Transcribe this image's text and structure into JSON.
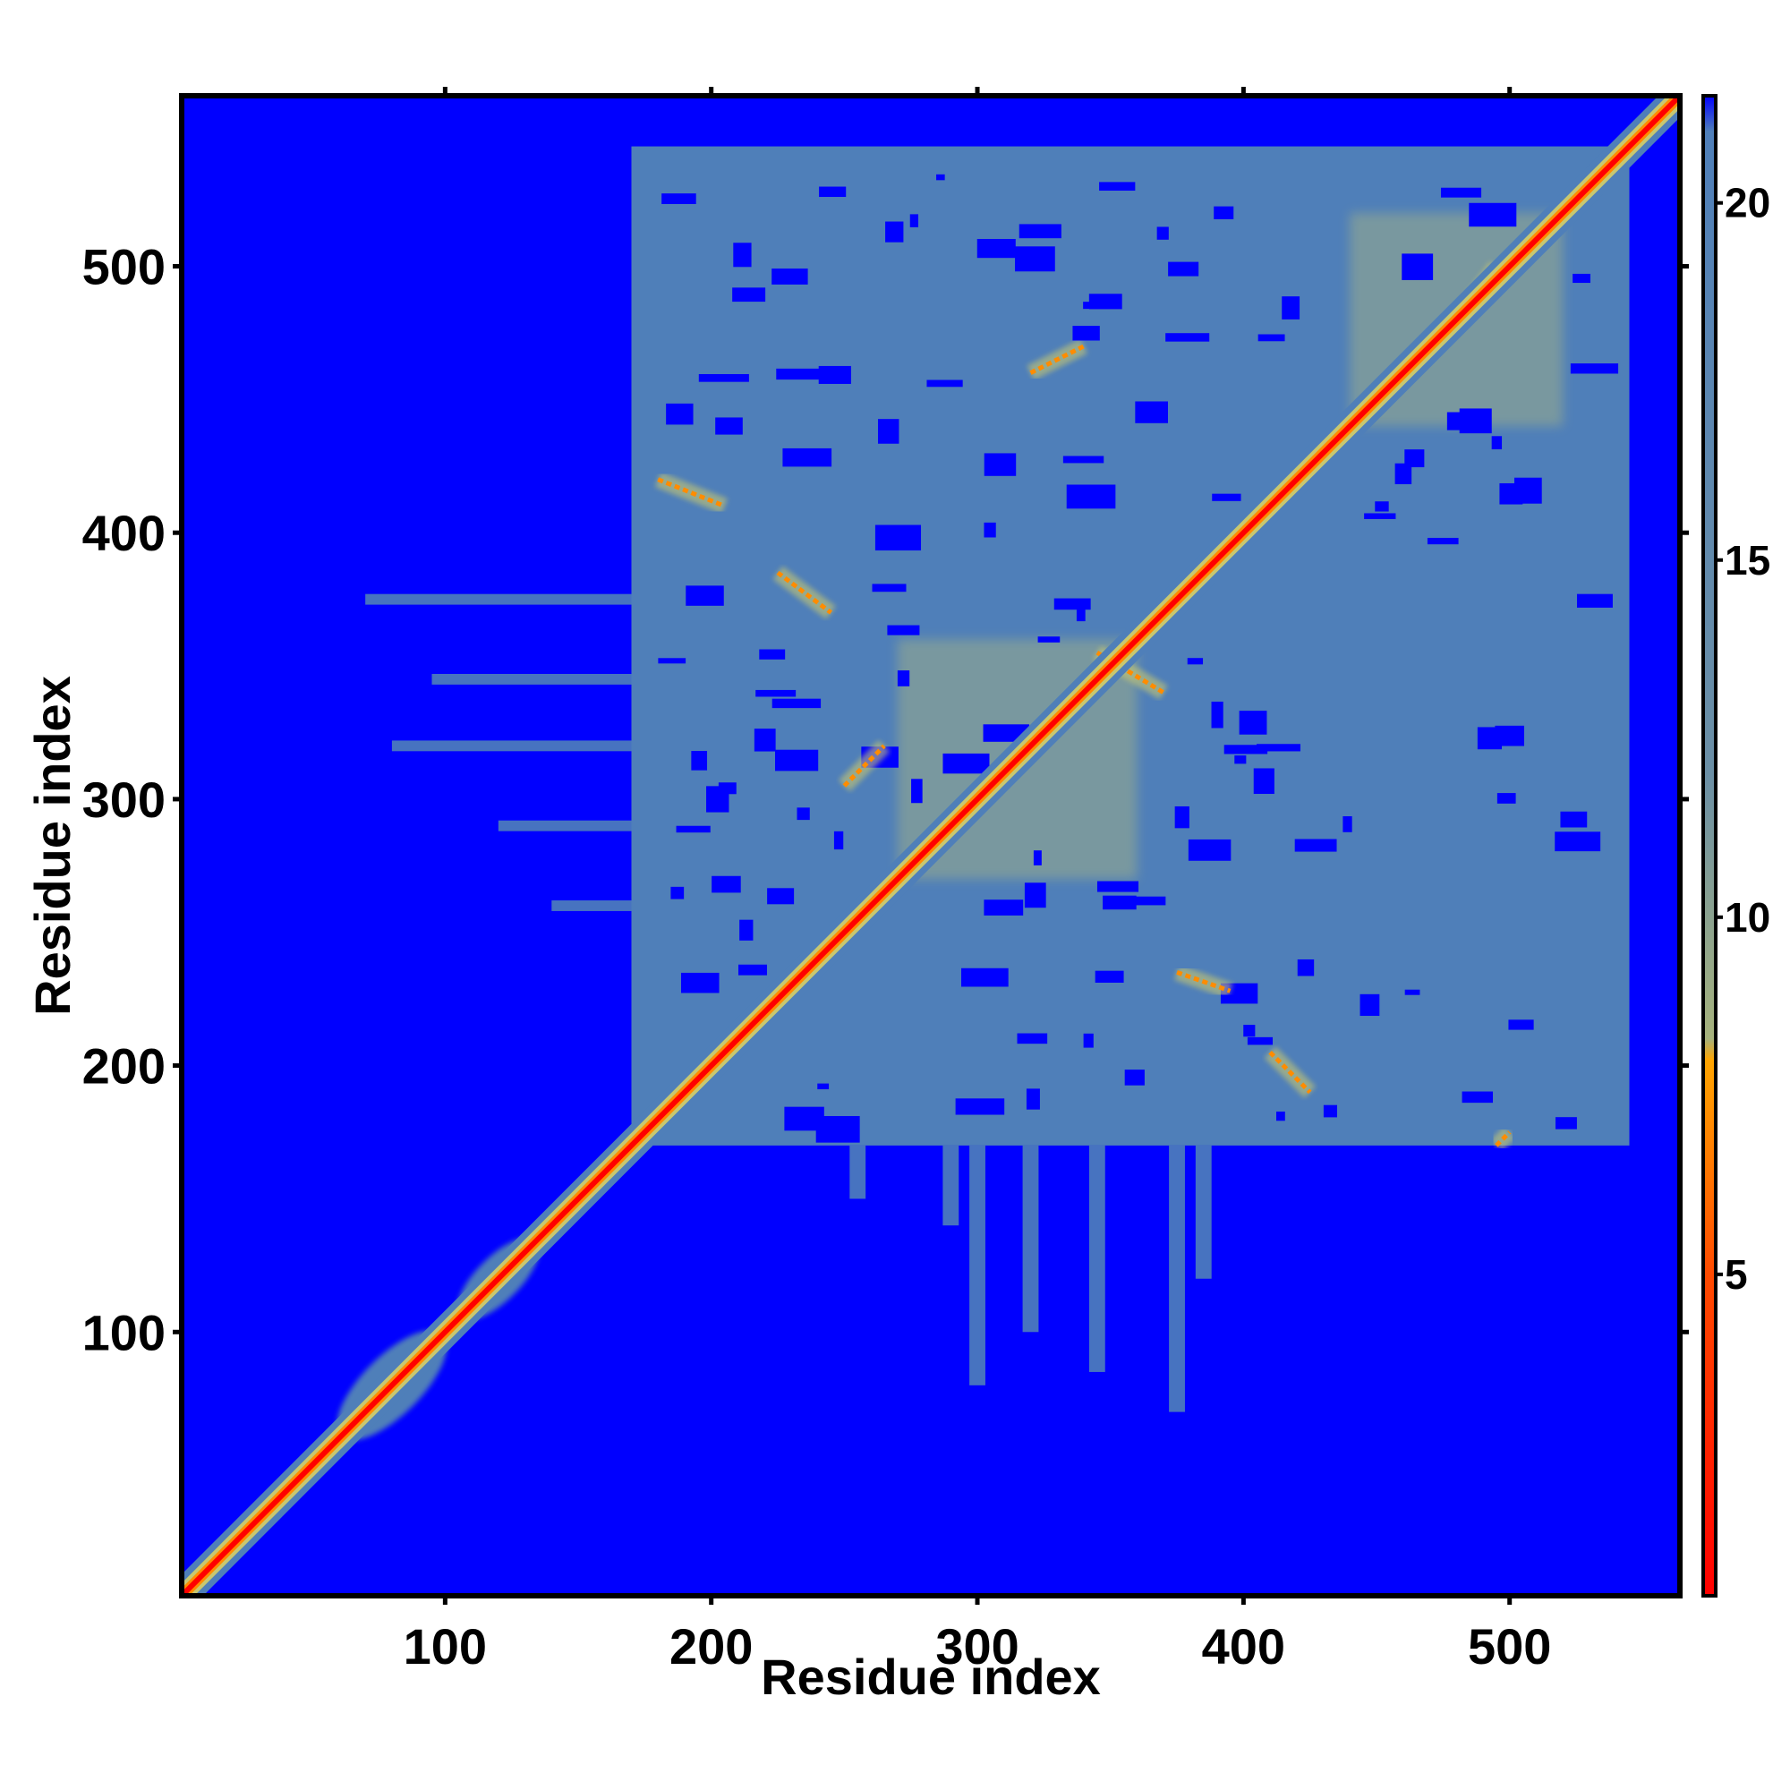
{
  "chart_data": {
    "type": "heatmap",
    "title": "",
    "xlabel": "Residue index",
    "ylabel": "Residue index",
    "xlim": [
      1,
      564
    ],
    "ylim": [
      1,
      564
    ],
    "x_ticks": [
      100,
      200,
      300,
      400,
      500
    ],
    "y_ticks": [
      100,
      200,
      300,
      400,
      500
    ],
    "colorbar": {
      "ticks": [
        5,
        10,
        15,
        20
      ],
      "range": [
        0.5,
        21.5
      ],
      "stops": [
        {
          "value": 0.5,
          "color": "#ff0000"
        },
        {
          "value": 5,
          "color": "#ff4a00"
        },
        {
          "value": 8,
          "color": "#ffa500"
        },
        {
          "value": 8.3,
          "color": "#a6b27c"
        },
        {
          "value": 12,
          "color": "#6b8fa5"
        },
        {
          "value": 21,
          "color": "#4f7fb9"
        },
        {
          "value": 21.5,
          "color": "#0000ff"
        }
      ]
    },
    "colors": {
      "background": "#0000ff",
      "contact_region": "#4f7fb9",
      "moderate": "#c8c870",
      "close": "#ff8c00",
      "diagonal": "#ff0000"
    },
    "diagonal": {
      "from": 1,
      "to": 564,
      "value": 1
    },
    "regions": [
      {
        "residues_x": [
          170,
          545
        ],
        "residues_y": [
          170,
          545
        ],
        "value": 18,
        "description_value": "dense mid-range distances"
      },
      {
        "residues_x": [
          60,
          100
        ],
        "residues_y": [
          60,
          100
        ],
        "value": 18
      },
      {
        "residues_x": [
          105,
          135
        ],
        "residues_y": [
          105,
          135
        ],
        "value": 18
      },
      {
        "residues_x": [
          270,
          360
        ],
        "residues_y": [
          270,
          360
        ],
        "value": 12
      },
      {
        "residues_x": [
          440,
          520
        ],
        "residues_y": [
          440,
          520
        ],
        "value": 12
      }
    ],
    "close_contacts": [
      {
        "x": [
          225,
          245
        ],
        "y": [
          385,
          370
        ],
        "value": 6
      },
      {
        "x": [
          375,
          395
        ],
        "y": [
          235,
          228
        ],
        "value": 6
      },
      {
        "x": [
          495,
          500
        ],
        "y": [
          170,
          175
        ],
        "value": 6
      },
      {
        "x": [
          320,
          340
        ],
        "y": [
          460,
          470
        ],
        "value": 6
      },
      {
        "x": [
          180,
          205
        ],
        "y": [
          420,
          410
        ],
        "value": 6
      },
      {
        "x": [
          250,
          265
        ],
        "y": [
          305,
          320
        ],
        "value": 6
      },
      {
        "x": [
          480,
          495
        ],
        "y": [
          480,
          500
        ],
        "value": 6
      },
      {
        "x": [
          345,
          370
        ],
        "y": [
          355,
          340
        ],
        "value": 6
      },
      {
        "x": [
          410,
          425
        ],
        "y": [
          205,
          190
        ],
        "value": 6
      }
    ]
  }
}
